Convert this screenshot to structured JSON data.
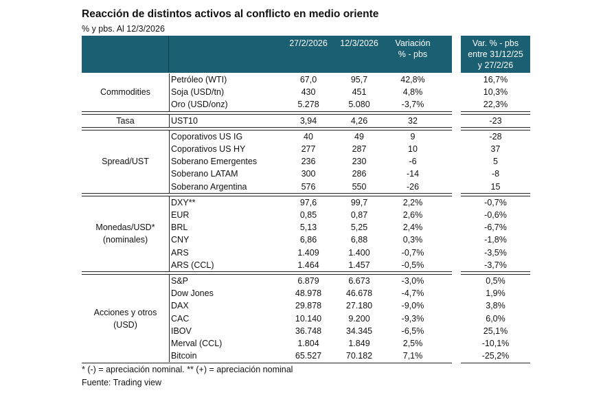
{
  "title": "Reacción de distintos activos al conflicto en medio oriente",
  "subtitle": "% y pbs. Al 12/3/2026",
  "header": {
    "col1": "27/2/2026",
    "col2": "12/3/2026",
    "col3_line1": "Variación",
    "col3_line2": "% - pbs",
    "side_line1": "Var. % - pbs",
    "side_line2": "entre 31/12/25",
    "side_line3": "y 27/2/26"
  },
  "header_color": "#1a5f72",
  "groups": [
    {
      "label": [
        "Commodities"
      ],
      "rows": [
        [
          "Petróleo (WTI)",
          "67,0",
          "95,7",
          "42,8%",
          "16,7%"
        ],
        [
          "Soja (USD/tn)",
          "430",
          "451",
          "4,8%",
          "10,3%"
        ],
        [
          "Oro (USD/onz)",
          "5.278",
          "5.080",
          "-3,7%",
          "22,3%"
        ]
      ]
    },
    {
      "label": [
        "Tasa"
      ],
      "rows": [
        [
          "UST10",
          "3,94",
          "4,26",
          "32",
          "-23"
        ]
      ]
    },
    {
      "label": [
        "Spread/UST"
      ],
      "rows": [
        [
          "Coporativos US IG",
          "40",
          "49",
          "9",
          "-28"
        ],
        [
          "Coporativos US HY",
          "277",
          "287",
          "10",
          "37"
        ],
        [
          "Soberano Emergentes",
          "236",
          "230",
          "-6",
          "5"
        ],
        [
          "Soberano LATAM",
          "300",
          "286",
          "-14",
          "-8"
        ],
        [
          "Soberano Argentina",
          "576",
          "550",
          "-26",
          "15"
        ]
      ]
    },
    {
      "label": [
        "Monedas/USD*",
        "(nominales)"
      ],
      "rows": [
        [
          "DXY**",
          "97,6",
          "99,7",
          "2,2%",
          "-0,7%"
        ],
        [
          "EUR",
          "0,85",
          "0,87",
          "2,6%",
          "-0,6%"
        ],
        [
          "BRL",
          "5,13",
          "5,25",
          "2,4%",
          "-6,7%"
        ],
        [
          "CNY",
          "6,86",
          "6,88",
          "0,3%",
          "-1,8%"
        ],
        [
          "ARS",
          "1.409",
          "1.400",
          "-0,7%",
          "-3,5%"
        ],
        [
          "ARS (CCL)",
          "1.464",
          "1.457",
          "-0,5%",
          "-3,7%"
        ]
      ]
    },
    {
      "label": [
        "Acciones y otros",
        "(USD)"
      ],
      "rows": [
        [
          "S&P",
          "6.879",
          "6.673",
          "-3,0%",
          "0,5%"
        ],
        [
          "Dow Jones",
          "48.978",
          "46.678",
          "-4,7%",
          "1,9%"
        ],
        [
          "DAX",
          "29.878",
          "27.180",
          "-9,0%",
          "3,8%"
        ],
        [
          "CAC",
          "10.140",
          "9.200",
          "-9,3%",
          "6,0%"
        ],
        [
          "IBOV",
          "36.748",
          "34.345",
          "-6,5%",
          "25,1%"
        ],
        [
          "Merval (CCL)",
          "1.804",
          "1.849",
          "2,5%",
          "-10,1%"
        ],
        [
          "Bitcoin",
          "65.527",
          "70.182",
          "7,1%",
          "-25,2%"
        ]
      ]
    }
  ],
  "footnote": "* (-) = apreciación nominal. ** (+) = apreciación nominal",
  "source": "Fuente: Trading view"
}
